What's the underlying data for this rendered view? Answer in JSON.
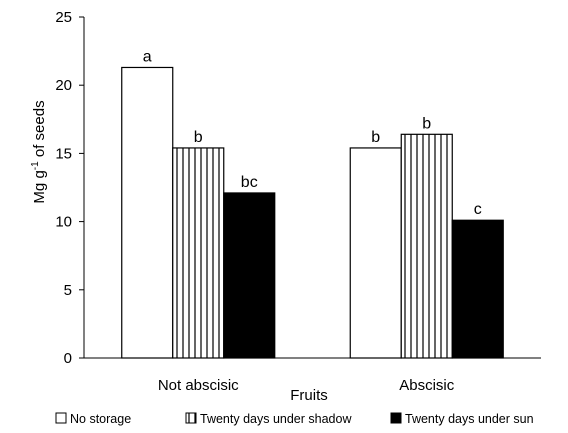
{
  "chart_data": {
    "type": "bar",
    "title": "",
    "xlabel": "Fruits",
    "ylabel": "Mg g",
    "ylabel_sup": "-1",
    "ylabel_suffix": " of seeds",
    "ylim": [
      0,
      25
    ],
    "yticks": [
      "0",
      "5",
      "10",
      "15",
      "20",
      "25"
    ],
    "grid": false,
    "legend_position": "bottom",
    "categories": [
      "Not abscisic",
      "Abscisic"
    ],
    "series": [
      {
        "name": "No storage",
        "pattern": "none",
        "fill": "#ffffff",
        "values": [
          21.3,
          15.4
        ],
        "labels": [
          "a",
          "b"
        ]
      },
      {
        "name": "Twenty days under shadow",
        "pattern": "vertical-stripes",
        "fill": "#ffffff",
        "values": [
          15.4,
          16.4
        ],
        "labels": [
          "b",
          "b"
        ]
      },
      {
        "name": "Twenty days under sun",
        "pattern": "solid",
        "fill": "#000000",
        "values": [
          12.1,
          10.1
        ],
        "labels": [
          "bc",
          "c"
        ]
      }
    ]
  }
}
